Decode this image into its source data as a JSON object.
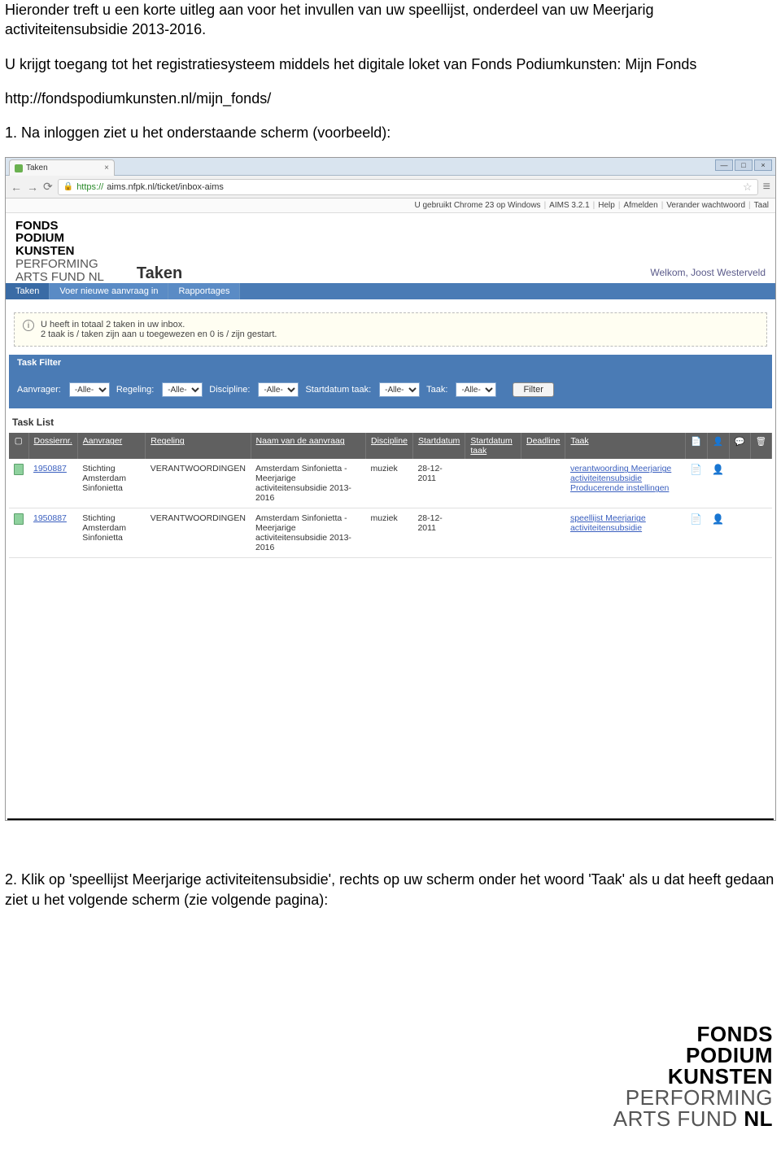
{
  "doc": {
    "para1": "Hieronder treft u een korte uitleg aan voor het invullen van uw speellijst, onderdeel van uw Meerjarig activiteitensubsidie 2013-2016.",
    "para2": "U krijgt toegang tot het registratiesysteem middels het digitale loket van Fonds Podiumkunsten: Mijn Fonds",
    "url": "http://fondspodiumkunsten.nl/mijn_fonds/",
    "step1": "1. Na inloggen ziet u het onderstaande scherm (voorbeeld):",
    "step2": "2. Klik op 'speellijst Meerjarige activiteitensubsidie', rechts op uw scherm onder het woord 'Taak' als u dat heeft gedaan ziet u het volgende scherm (zie volgende pagina):"
  },
  "browser": {
    "tab_title": "Taken",
    "url_https": "https://",
    "url_rest": "aims.nfpk.nl/ticket/inbox-aims"
  },
  "topbar": {
    "chrome": "U gebruikt Chrome 23 op Windows",
    "version": "AIMS 3.2.1",
    "help": "Help",
    "logout": "Afmelden",
    "pwd": "Verander wachtwoord",
    "lang": "Taal"
  },
  "header": {
    "logo_l1": "FONDS",
    "logo_l2": "PODIUM",
    "logo_l3": "KUNSTEN",
    "logo_l4": "PERFORMING",
    "logo_l5": "ARTS FUND NL",
    "page_title": "Taken",
    "welcome": "Welkom, Joost Westerveld"
  },
  "nav": {
    "tab1": "Taken",
    "tab2": "Voer nieuwe aanvraag in",
    "tab3": "Rapportages"
  },
  "info": {
    "line1": "U heeft in totaal 2 taken in uw inbox.",
    "line2": "2 taak is / taken zijn aan u toegewezen en 0 is / zijn gestart."
  },
  "filter": {
    "title": "Task Filter",
    "l_aanvrager": "Aanvrager:",
    "l_regeling": "Regeling:",
    "l_discipline": "Discipline:",
    "l_start": "Startdatum taak:",
    "l_taak": "Taak:",
    "opt_all": "-Alle-",
    "btn": "Filter"
  },
  "list": {
    "title": "Task List",
    "columns": {
      "dossier": "Dossiernr.",
      "aanvrager": "Aanvrager",
      "regeling": "Regeling",
      "naam": "Naam van de aanvraag",
      "discipline": "Discipline",
      "startdatum": "Startdatum",
      "startdatum_taak": "Startdatum taak",
      "deadline": "Deadline",
      "taak": "Taak"
    },
    "rows": [
      {
        "dossier": "1950887",
        "aanvrager": "Stichting Amsterdam Sinfonietta",
        "regeling": "VERANTWOORDINGEN",
        "naam": "Amsterdam Sinfonietta - Meerjarige activiteitensubsidie 2013-2016",
        "discipline": "muziek",
        "startdatum": "28-12-2011",
        "startdatum_taak": "",
        "deadline": "",
        "taak": "verantwoording Meerjarige activiteitensubsidie Producerende instellingen"
      },
      {
        "dossier": "1950887",
        "aanvrager": "Stichting Amsterdam Sinfonietta",
        "regeling": "VERANTWOORDINGEN",
        "naam": "Amsterdam Sinfonietta - Meerjarige activiteitensubsidie 2013-2016",
        "discipline": "muziek",
        "startdatum": "28-12-2011",
        "startdatum_taak": "",
        "deadline": "",
        "taak": "speellijst Meerjarige activiteitensubsidie"
      }
    ]
  },
  "colors": {
    "nav_bg": "#4a7bb5",
    "table_header_bg": "#606060",
    "link": "#3a5fbf",
    "infobox_bg": "#fffef2"
  }
}
